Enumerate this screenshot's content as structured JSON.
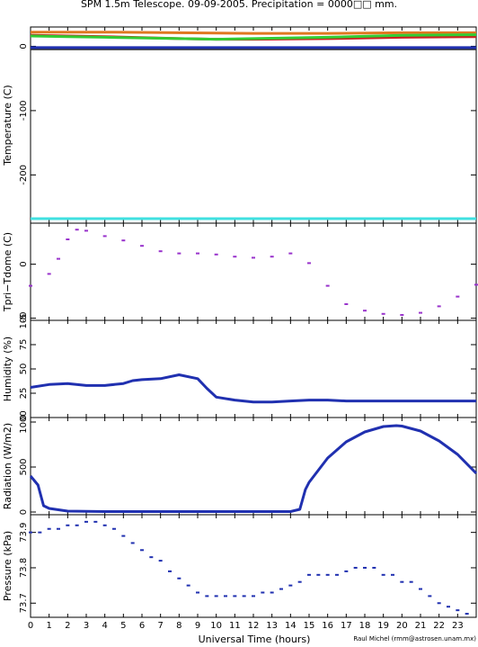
{
  "title": "SPM 1.5m Telescope. 09-09-2005. Precipitation = 0000□□ mm.",
  "xlabel": "Universal Time (hours)",
  "credit": "Raul Michel (rmm@astrosen.unam.mx)",
  "chart_data": [
    {
      "type": "line",
      "ylabel": "Temperature (C)",
      "ylim": [
        -275,
        30
      ],
      "yticks": [
        0,
        -100,
        -200
      ],
      "xlim": [
        0,
        24
      ],
      "series": [
        {
          "color": "#e07820",
          "x": [
            0,
            4,
            8,
            12,
            16,
            20,
            24
          ],
          "y": [
            22,
            22,
            21,
            20,
            20,
            21,
            21
          ]
        },
        {
          "color": "#cc2020",
          "x": [
            0,
            4,
            8,
            10,
            12,
            16,
            20,
            24
          ],
          "y": [
            17,
            15,
            12,
            11,
            11,
            12,
            14,
            15
          ]
        },
        {
          "color": "#33cc33",
          "x": [
            0,
            2,
            4,
            8,
            10,
            12,
            16,
            20,
            24
          ],
          "y": [
            16,
            15,
            14,
            12,
            11,
            12,
            14,
            17,
            18
          ]
        },
        {
          "color": "#2c2c2c",
          "x": [
            0,
            24
          ],
          "y": [
            -4,
            -4
          ]
        },
        {
          "color": "#2030b0",
          "x": [
            0,
            24
          ],
          "y": [
            -2,
            -2
          ]
        },
        {
          "color": "#40e0e0",
          "x": [
            0,
            24
          ],
          "y": [
            -268,
            -268
          ]
        }
      ]
    },
    {
      "type": "scatter",
      "ylabel": "Tpri−Tdome (C)",
      "ylim": [
        -5.2,
        3.8
      ],
      "yticks": [
        0,
        -5
      ],
      "xlim": [
        0,
        24
      ],
      "color": "#9933cc",
      "x": [
        0,
        1,
        1.5,
        2,
        2.5,
        3,
        4,
        5,
        6,
        7,
        8,
        9,
        10,
        11,
        12,
        13,
        14,
        15,
        16,
        17,
        18,
        19,
        20,
        21,
        22,
        23,
        24
      ],
      "y": [
        -2,
        -0.9,
        0.5,
        2.3,
        3.2,
        3.1,
        2.6,
        2.2,
        1.7,
        1.2,
        1.0,
        1.0,
        0.9,
        0.7,
        0.6,
        0.7,
        1.0,
        0.1,
        -2.0,
        -3.7,
        -4.3,
        -4.6,
        -4.7,
        -4.5,
        -3.9,
        -3.0,
        -1.9
      ]
    },
    {
      "type": "line",
      "ylabel": "Humidity (%)",
      "ylim": [
        0,
        100
      ],
      "yticks": [
        100,
        75,
        50,
        25,
        0
      ],
      "xlim": [
        0,
        24
      ],
      "color": "#2030b0",
      "x": [
        0,
        1,
        2,
        3,
        4,
        5,
        5.5,
        6,
        7,
        8,
        9,
        9.5,
        10,
        11,
        12,
        13,
        14,
        15,
        16,
        17,
        18,
        19,
        20,
        21,
        22,
        23,
        24
      ],
      "y": [
        31,
        34,
        35,
        33,
        33,
        35,
        38,
        39,
        40,
        44,
        40,
        30,
        21,
        18,
        16,
        16,
        17,
        18,
        18,
        17,
        17,
        17,
        17,
        17,
        17,
        17,
        17
      ]
    },
    {
      "type": "line",
      "ylabel": "Radiation (W/m2)",
      "ylim": [
        -30,
        1050
      ],
      "yticks": [
        1000,
        500,
        0
      ],
      "xlim": [
        0,
        24
      ],
      "color": "#2030b0",
      "x": [
        0,
        0.4,
        0.7,
        1,
        2,
        4,
        6,
        8,
        10,
        12,
        14,
        14.5,
        14.8,
        15,
        16,
        17,
        18,
        19,
        19.7,
        20,
        21,
        22,
        23,
        24
      ],
      "y": [
        400,
        300,
        70,
        40,
        10,
        5,
        5,
        5,
        5,
        5,
        5,
        30,
        250,
        330,
        600,
        780,
        890,
        950,
        960,
        955,
        900,
        790,
        640,
        430
      ]
    },
    {
      "type": "scatter",
      "ylabel": "Pressure (kPa)",
      "ylim": [
        73.66,
        73.95
      ],
      "yticks": [
        73.9,
        73.8,
        73.7
      ],
      "xlim": [
        0,
        24
      ],
      "xticks": [
        0,
        1,
        2,
        3,
        4,
        5,
        6,
        7,
        8,
        9,
        10,
        11,
        12,
        13,
        14,
        15,
        16,
        17,
        18,
        19,
        20,
        21,
        22,
        23
      ],
      "color": "#2030b0",
      "x": [
        0,
        0.5,
        1,
        1.5,
        2,
        2.5,
        3,
        3.5,
        4,
        4.5,
        5,
        5.5,
        6,
        6.5,
        7,
        7.5,
        8,
        8.5,
        9,
        9.5,
        10,
        10.5,
        11,
        11.5,
        12,
        12.5,
        13,
        13.5,
        14,
        14.5,
        15,
        15.5,
        16,
        16.5,
        17,
        17.5,
        18,
        18.5,
        19,
        19.5,
        20,
        20.5,
        21,
        21.5,
        22,
        22.5,
        23,
        23.5
      ],
      "y": [
        73.9,
        73.9,
        73.91,
        73.91,
        73.92,
        73.92,
        73.93,
        73.93,
        73.92,
        73.91,
        73.89,
        73.87,
        73.85,
        73.83,
        73.82,
        73.79,
        73.77,
        73.75,
        73.73,
        73.72,
        73.72,
        73.72,
        73.72,
        73.72,
        73.72,
        73.73,
        73.73,
        73.74,
        73.75,
        73.76,
        73.78,
        73.78,
        73.78,
        73.78,
        73.79,
        73.8,
        73.8,
        73.8,
        73.78,
        73.78,
        73.76,
        73.76,
        73.74,
        73.72,
        73.7,
        73.69,
        73.68,
        73.67
      ]
    }
  ]
}
